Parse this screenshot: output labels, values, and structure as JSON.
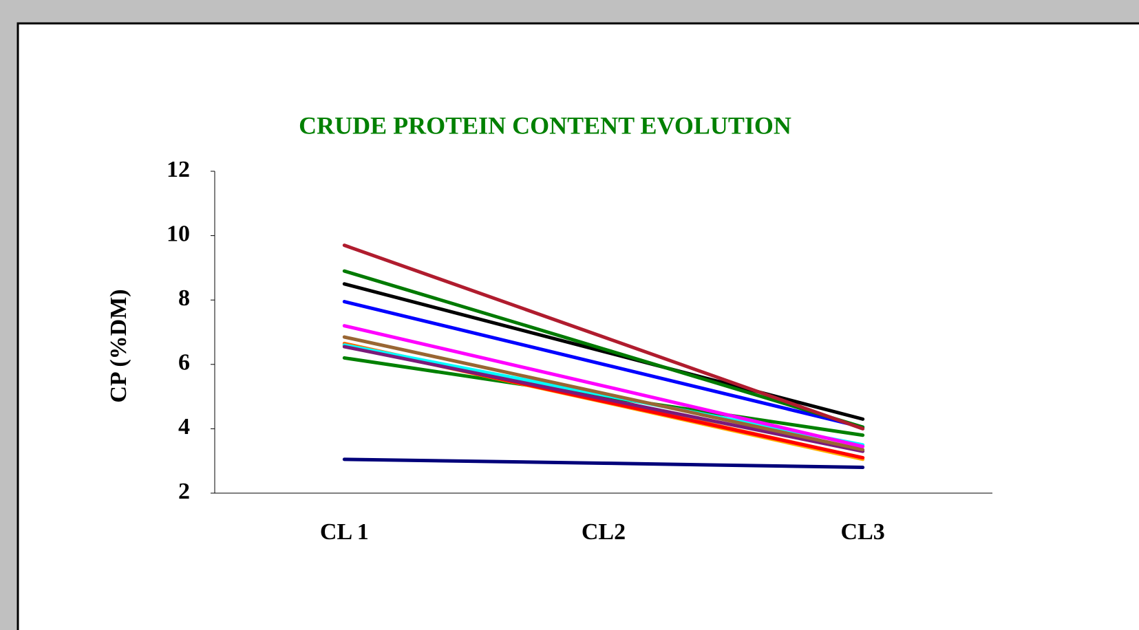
{
  "chart_data": {
    "type": "line",
    "title": "CRUDE PROTEIN CONTENT EVOLUTION",
    "y_label": "CP (%DM)",
    "categories": [
      "CL 1",
      "CL2",
      "CL3"
    ],
    "ylim": [
      2,
      12
    ],
    "yticks": [
      2,
      4,
      6,
      8,
      10,
      12
    ],
    "grid": false,
    "series": [
      {
        "color": "#00007a",
        "values": [
          3.05,
          2.93,
          2.8
        ]
      },
      {
        "color": "#008000",
        "values": [
          6.2,
          5.0,
          3.8
        ]
      },
      {
        "color": "#ffb000",
        "values": [
          6.6,
          4.83,
          3.05
        ]
      },
      {
        "color": "#ff6a00",
        "values": [
          6.65,
          4.88,
          3.1
        ]
      },
      {
        "color": "#ff0000",
        "values": [
          6.6,
          4.85,
          3.1
        ]
      },
      {
        "color": "#00ffff",
        "values": [
          6.6,
          5.05,
          3.5
        ]
      },
      {
        "color": "#7a1a7a",
        "values": [
          6.55,
          4.93,
          3.3
        ]
      },
      {
        "color": "#996633",
        "values": [
          6.85,
          5.1,
          3.35
        ]
      },
      {
        "color": "#ff00ff",
        "values": [
          7.2,
          5.33,
          3.45
        ]
      },
      {
        "color": "#0000ff",
        "values": [
          7.95,
          6.0,
          4.05
        ]
      },
      {
        "color": "#000000",
        "values": [
          8.5,
          6.4,
          4.3
        ]
      },
      {
        "color": "#007a00",
        "values": [
          8.9,
          6.48,
          4.05
        ]
      },
      {
        "color": "#b01c2e",
        "values": [
          9.7,
          6.85,
          4.0
        ]
      }
    ]
  }
}
